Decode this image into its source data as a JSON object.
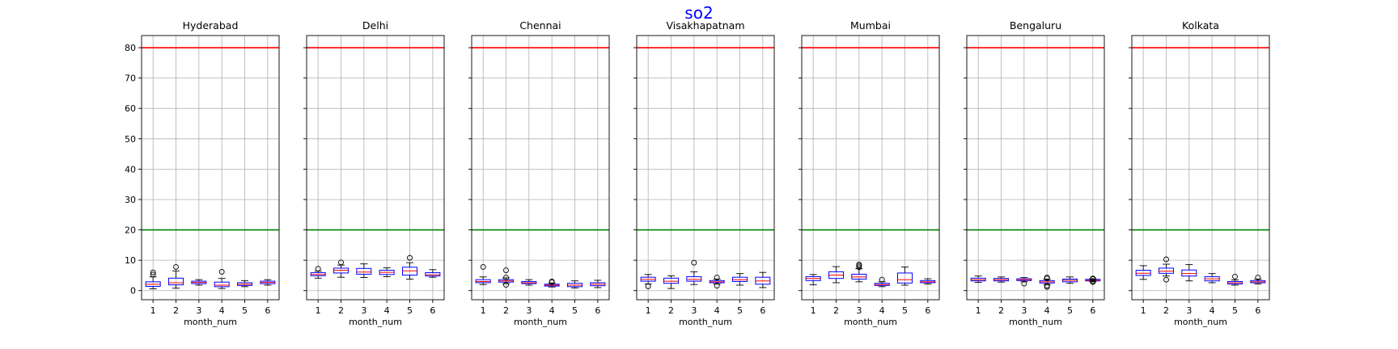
{
  "figure": {
    "title": "so2",
    "title_color": "#0000ff"
  },
  "colors": {
    "upper_line": "#ff0000",
    "lower_line": "#008000",
    "box": "#0000ff",
    "median": "#ff0000",
    "whisker": "#000000",
    "grid": "#b0b0b0"
  },
  "chart_data": [
    {
      "type": "box",
      "title": "Hyderabad",
      "xlabel": "month_num",
      "ylim": [
        -3,
        84
      ],
      "yticks": [
        0,
        10,
        20,
        30,
        40,
        50,
        60,
        70,
        80
      ],
      "grid": true,
      "reference_lines": [
        80,
        20
      ],
      "categories": [
        "1",
        "2",
        "3",
        "4",
        "5",
        "6"
      ],
      "boxes": [
        {
          "whislo": 0.6,
          "q1": 1.4,
          "med": 2.1,
          "q3": 2.9,
          "whishi": 4.5,
          "fliers": [
            5.3,
            6.0
          ]
        },
        {
          "whislo": 0.8,
          "q1": 1.9,
          "med": 2.6,
          "q3": 4.1,
          "whishi": 6.5,
          "fliers": [
            7.8
          ]
        },
        {
          "whislo": 1.8,
          "q1": 2.3,
          "med": 2.7,
          "q3": 3.1,
          "whishi": 3.6,
          "fliers": []
        },
        {
          "whislo": 0.7,
          "q1": 1.3,
          "med": 1.8,
          "q3": 2.8,
          "whishi": 4.0,
          "fliers": [
            6.2
          ]
        },
        {
          "whislo": 1.3,
          "q1": 1.7,
          "med": 2.1,
          "q3": 2.6,
          "whishi": 3.3,
          "fliers": []
        },
        {
          "whislo": 1.8,
          "q1": 2.3,
          "med": 2.7,
          "q3": 3.1,
          "whishi": 3.6,
          "fliers": []
        }
      ]
    },
    {
      "type": "box",
      "title": "Delhi",
      "xlabel": "month_num",
      "ylim": [
        -3,
        84
      ],
      "yticks": [
        0,
        10,
        20,
        30,
        40,
        50,
        60,
        70,
        80
      ],
      "grid": true,
      "reference_lines": [
        80,
        20
      ],
      "categories": [
        "1",
        "2",
        "3",
        "4",
        "5",
        "6"
      ],
      "boxes": [
        {
          "whislo": 4.1,
          "q1": 4.9,
          "med": 5.3,
          "q3": 5.9,
          "whishi": 6.4,
          "fliers": [
            7.2
          ]
        },
        {
          "whislo": 4.4,
          "q1": 5.8,
          "med": 6.7,
          "q3": 7.4,
          "whishi": 8.4,
          "fliers": [
            9.3
          ]
        },
        {
          "whislo": 4.3,
          "q1": 5.4,
          "med": 6.1,
          "q3": 7.3,
          "whishi": 8.8,
          "fliers": []
        },
        {
          "whislo": 4.6,
          "q1": 5.3,
          "med": 6.0,
          "q3": 6.7,
          "whishi": 7.5,
          "fliers": []
        },
        {
          "whislo": 3.8,
          "q1": 5.1,
          "med": 6.5,
          "q3": 7.7,
          "whishi": 9.2,
          "fliers": [
            10.8
          ]
        },
        {
          "whislo": 4.4,
          "q1": 4.8,
          "med": 5.2,
          "q3": 5.9,
          "whishi": 6.9,
          "fliers": []
        }
      ]
    },
    {
      "type": "box",
      "title": "Chennai",
      "xlabel": "month_num",
      "ylim": [
        -3,
        84
      ],
      "yticks": [
        0,
        10,
        20,
        30,
        40,
        50,
        60,
        70,
        80
      ],
      "grid": true,
      "reference_lines": [
        80,
        20
      ],
      "categories": [
        "1",
        "2",
        "3",
        "4",
        "5",
        "6"
      ],
      "boxes": [
        {
          "whislo": 2.0,
          "q1": 2.6,
          "med": 3.0,
          "q3": 3.6,
          "whishi": 4.5,
          "fliers": [
            7.8
          ]
        },
        {
          "whislo": 2.3,
          "q1": 2.8,
          "med": 3.2,
          "q3": 3.6,
          "whishi": 4.2,
          "fliers": [
            1.9,
            4.3,
            6.7
          ]
        },
        {
          "whislo": 1.8,
          "q1": 2.3,
          "med": 2.6,
          "q3": 3.0,
          "whishi": 3.6,
          "fliers": []
        },
        {
          "whislo": 1.2,
          "q1": 1.5,
          "med": 1.8,
          "q3": 2.1,
          "whishi": 2.5,
          "fliers": [
            2.8,
            3.0
          ]
        },
        {
          "whislo": 0.9,
          "q1": 1.3,
          "med": 1.8,
          "q3": 2.4,
          "whishi": 3.2,
          "fliers": []
        },
        {
          "whislo": 1.0,
          "q1": 1.6,
          "med": 2.1,
          "q3": 2.6,
          "whishi": 3.4,
          "fliers": []
        }
      ]
    },
    {
      "type": "box",
      "title": "Visakhapatnam",
      "xlabel": "month_num",
      "ylim": [
        -3,
        84
      ],
      "yticks": [
        0,
        10,
        20,
        30,
        40,
        50,
        60,
        70,
        80
      ],
      "grid": true,
      "reference_lines": [
        80,
        20
      ],
      "categories": [
        "1",
        "2",
        "3",
        "4",
        "5",
        "6"
      ],
      "boxes": [
        {
          "whislo": 2.2,
          "q1": 3.1,
          "med": 3.7,
          "q3": 4.4,
          "whishi": 5.3,
          "fliers": [
            1.4
          ]
        },
        {
          "whislo": 0.7,
          "q1": 2.4,
          "med": 3.1,
          "q3": 4.1,
          "whishi": 4.9,
          "fliers": []
        },
        {
          "whislo": 2.0,
          "q1": 3.1,
          "med": 3.7,
          "q3": 4.6,
          "whishi": 6.2,
          "fliers": [
            9.2
          ]
        },
        {
          "whislo": 2.2,
          "q1": 2.6,
          "med": 2.9,
          "q3": 3.3,
          "whishi": 3.8,
          "fliers": [
            1.6,
            4.3
          ]
        },
        {
          "whislo": 1.8,
          "q1": 3.0,
          "med": 3.6,
          "q3": 4.4,
          "whishi": 5.6,
          "fliers": []
        },
        {
          "whislo": 1.0,
          "q1": 2.1,
          "med": 3.2,
          "q3": 4.4,
          "whishi": 6.0,
          "fliers": []
        }
      ]
    },
    {
      "type": "box",
      "title": "Mumbai",
      "xlabel": "month_num",
      "ylim": [
        -3,
        84
      ],
      "yticks": [
        0,
        10,
        20,
        30,
        40,
        50,
        60,
        70,
        80
      ],
      "grid": true,
      "reference_lines": [
        80,
        20
      ],
      "categories": [
        "1",
        "2",
        "3",
        "4",
        "5",
        "6"
      ],
      "boxes": [
        {
          "whislo": 1.9,
          "q1": 3.3,
          "med": 4.0,
          "q3": 4.6,
          "whishi": 5.3,
          "fliers": []
        },
        {
          "whislo": 2.6,
          "q1": 4.0,
          "med": 5.1,
          "q3": 6.2,
          "whishi": 7.9,
          "fliers": []
        },
        {
          "whislo": 2.9,
          "q1": 3.8,
          "med": 4.5,
          "q3": 5.4,
          "whishi": 7.2,
          "fliers": [
            7.7,
            8.2,
            8.6
          ]
        },
        {
          "whislo": 1.3,
          "q1": 1.7,
          "med": 2.0,
          "q3": 2.4,
          "whishi": 2.9,
          "fliers": [
            3.6
          ]
        },
        {
          "whislo": 1.8,
          "q1": 2.5,
          "med": 3.6,
          "q3": 5.8,
          "whishi": 7.8,
          "fliers": []
        },
        {
          "whislo": 2.2,
          "q1": 2.6,
          "med": 2.9,
          "q3": 3.3,
          "whishi": 3.9,
          "fliers": []
        }
      ]
    },
    {
      "type": "box",
      "title": "Bengaluru",
      "xlabel": "month_num",
      "ylim": [
        -3,
        84
      ],
      "yticks": [
        0,
        10,
        20,
        30,
        40,
        50,
        60,
        70,
        80
      ],
      "grid": true,
      "reference_lines": [
        80,
        20
      ],
      "categories": [
        "1",
        "2",
        "3",
        "4",
        "5",
        "6"
      ],
      "boxes": [
        {
          "whislo": 2.7,
          "q1": 3.2,
          "med": 3.6,
          "q3": 4.1,
          "whishi": 4.8,
          "fliers": []
        },
        {
          "whislo": 2.8,
          "q1": 3.2,
          "med": 3.6,
          "q3": 4.0,
          "whishi": 4.5,
          "fliers": []
        },
        {
          "whislo": 2.9,
          "q1": 3.3,
          "med": 3.6,
          "q3": 3.9,
          "whishi": 4.3,
          "fliers": [
            2.3
          ]
        },
        {
          "whislo": 2.0,
          "q1": 2.5,
          "med": 2.9,
          "q3": 3.3,
          "whishi": 3.8,
          "fliers": [
            1.2,
            1.6,
            4.0,
            4.3
          ]
        },
        {
          "whislo": 2.4,
          "q1": 2.9,
          "med": 3.4,
          "q3": 3.8,
          "whishi": 4.5,
          "fliers": []
        },
        {
          "whislo": 2.9,
          "q1": 3.2,
          "med": 3.4,
          "q3": 3.7,
          "whishi": 3.9,
          "fliers": [
            2.8,
            3.1,
            3.8,
            4.0
          ]
        }
      ]
    },
    {
      "type": "box",
      "title": "Kolkata",
      "xlabel": "month_num",
      "ylim": [
        -3,
        84
      ],
      "yticks": [
        0,
        10,
        20,
        30,
        40,
        50,
        60,
        70,
        80
      ],
      "grid": true,
      "reference_lines": [
        80,
        20
      ],
      "categories": [
        "1",
        "2",
        "3",
        "4",
        "5",
        "6"
      ],
      "boxes": [
        {
          "whislo": 3.7,
          "q1": 5.0,
          "med": 5.7,
          "q3": 6.7,
          "whishi": 8.2,
          "fliers": []
        },
        {
          "whislo": 4.8,
          "q1": 5.7,
          "med": 6.4,
          "q3": 7.4,
          "whishi": 8.7,
          "fliers": [
            3.6,
            10.3
          ]
        },
        {
          "whislo": 3.2,
          "q1": 4.8,
          "med": 5.6,
          "q3": 6.8,
          "whishi": 8.6,
          "fliers": []
        },
        {
          "whislo": 2.6,
          "q1": 3.2,
          "med": 3.9,
          "q3": 4.6,
          "whishi": 5.6,
          "fliers": []
        },
        {
          "whislo": 1.8,
          "q1": 2.2,
          "med": 2.6,
          "q3": 3.0,
          "whishi": 3.5,
          "fliers": [
            4.6
          ]
        },
        {
          "whislo": 2.2,
          "q1": 2.6,
          "med": 2.9,
          "q3": 3.3,
          "whishi": 3.8,
          "fliers": [
            4.3
          ]
        }
      ]
    }
  ]
}
